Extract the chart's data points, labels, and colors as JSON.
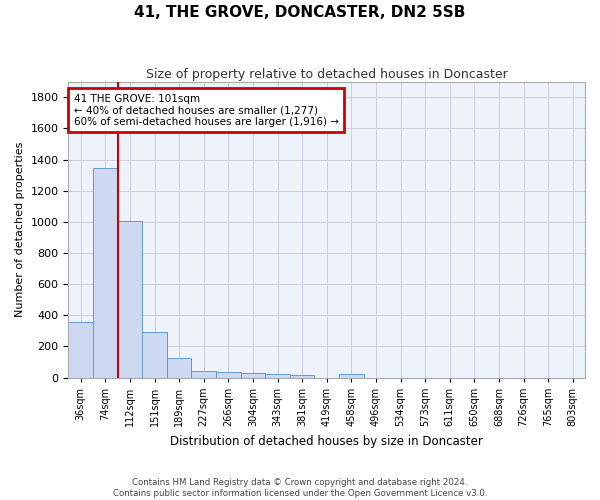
{
  "title": "41, THE GROVE, DONCASTER, DN2 5SB",
  "subtitle": "Size of property relative to detached houses in Doncaster",
  "xlabel": "Distribution of detached houses by size in Doncaster",
  "ylabel": "Number of detached properties",
  "footer_line1": "Contains HM Land Registry data © Crown copyright and database right 2024.",
  "footer_line2": "Contains public sector information licensed under the Open Government Licence v3.0.",
  "bin_labels": [
    "36sqm",
    "74sqm",
    "112sqm",
    "151sqm",
    "189sqm",
    "227sqm",
    "266sqm",
    "304sqm",
    "343sqm",
    "381sqm",
    "419sqm",
    "458sqm",
    "496sqm",
    "534sqm",
    "573sqm",
    "611sqm",
    "650sqm",
    "688sqm",
    "726sqm",
    "765sqm",
    "803sqm"
  ],
  "bar_values": [
    355,
    1345,
    1007,
    290,
    125,
    42,
    35,
    30,
    22,
    18,
    0,
    22,
    0,
    0,
    0,
    0,
    0,
    0,
    0,
    0,
    0
  ],
  "bar_color": "#ccd9f0",
  "bar_edge_color": "#6699cc",
  "grid_color": "#ccccdd",
  "bg_color": "#eef2fa",
  "ylim_max": 1900,
  "yticks": [
    0,
    200,
    400,
    600,
    800,
    1000,
    1200,
    1400,
    1600,
    1800
  ],
  "annotation_text": "41 THE GROVE: 101sqm\n← 40% of detached houses are smaller (1,277)\n60% of semi-detached houses are larger (1,916) →",
  "annotation_box_color": "#cc0000",
  "vline_color": "#cc0000",
  "vline_x": 1.5
}
